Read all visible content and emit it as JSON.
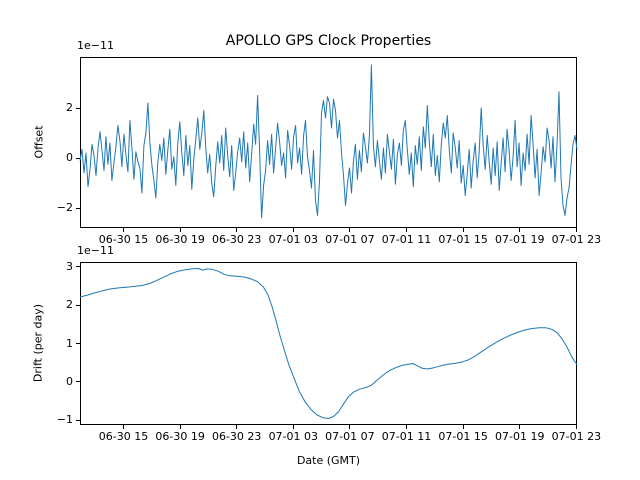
{
  "title": "APOLLO GPS Clock Properties",
  "xticks": {
    "labels": [
      "06-30 15",
      "06-30 19",
      "06-30 23",
      "07-01 03",
      "07-01 07",
      "07-01 11",
      "07-01 15",
      "07-01 19",
      "07-01 23"
    ],
    "fracs": [
      0.0875,
      0.2014,
      0.3153,
      0.4292,
      0.5431,
      0.657,
      0.7709,
      0.8848,
      0.9987
    ]
  },
  "chart_data": [
    {
      "type": "line",
      "title": "APOLLO GPS Clock Properties",
      "ylabel": "Offset",
      "scale_label": "1e−11",
      "units_multiplier": 1e-11,
      "line_color": "#1f77b4",
      "ylim": [
        -2.8,
        4.04
      ],
      "ytick_vals": [
        -2,
        0,
        2
      ],
      "ytick_labels": [
        "−2",
        "0",
        "2"
      ],
      "grid": false,
      "values": [
        -0.1,
        0.35,
        -0.6,
        0.2,
        -1.15,
        -0.45,
        0.55,
        0.1,
        -0.7,
        0.4,
        1.05,
        0.3,
        -0.5,
        0.85,
        -0.25,
        0.6,
        -0.9,
        -0.2,
        0.45,
        1.3,
        0.7,
        -0.35,
        0.95,
        0.15,
        -0.55,
        1.5,
        0.4,
        -0.85,
        0.25,
        -0.15,
        -0.4,
        -1.4,
        0.5,
        1.0,
        2.2,
        0.6,
        -0.3,
        -0.9,
        -1.6,
        -0.2,
        0.55,
        -0.1,
        0.8,
        -0.65,
        0.3,
        1.15,
        -0.45,
        0.05,
        -1.1,
        0.6,
        1.45,
        0.2,
        -0.7,
        0.9,
        -0.3,
        0.5,
        -1.25,
        -0.05,
        0.75,
        1.6,
        0.35,
        1.0,
        1.9,
        0.45,
        -0.6,
        0.15,
        -1.0,
        -1.55,
        -0.35,
        0.65,
        -0.2,
        0.9,
        -0.5,
        1.2,
        0.1,
        -0.75,
        0.5,
        -1.3,
        -0.6,
        0.25,
        0.8,
        -0.15,
        1.05,
        -0.4,
        0.6,
        -0.95,
        0.2,
        1.35,
        0.55,
        2.5,
        0.3,
        -2.4,
        -1.1,
        -0.5,
        0.7,
        -0.25,
        0.95,
        -0.6,
        0.4,
        1.4,
        0.65,
        -0.3,
        0.2,
        -0.8,
        1.1,
        0.5,
        -0.45,
        0.85,
        1.3,
        -0.2,
        0.4,
        -0.65,
        0.9,
        1.5,
        0.05,
        -0.5,
        -1.2,
        0.3,
        -1.7,
        -2.3,
        -0.9,
        1.8,
        2.3,
        1.6,
        2.45,
        2.2,
        1.2,
        2.35,
        1.9,
        0.8,
        1.5,
        0.2,
        -0.7,
        -1.9,
        -1.0,
        -0.4,
        -1.4,
        -0.15,
        0.55,
        -0.85,
        0.3,
        -0.55,
        1.0,
        0.45,
        -0.2,
        0.9,
        3.72,
        0.5,
        -0.35,
        0.7,
        -0.1,
        -0.85,
        0.4,
        -0.6,
        0.95,
        0.25,
        -0.45,
        0.75,
        -1.05,
        0.15,
        0.6,
        -0.3,
        1.1,
        1.5,
        0.35,
        -0.65,
        0.2,
        -1.15,
        0.5,
        -0.25,
        0.85,
        -0.5,
        1.25,
        0.4,
        2.1,
        0.65,
        -0.35,
        0.95,
        -0.7,
        0.1,
        -0.95,
        0.55,
        1.4,
        0.8,
        1.7,
        0.3,
        -0.6,
        1.0,
        0.45,
        -0.4,
        0.7,
        -1.0,
        -0.3,
        -1.5,
        -0.65,
        0.35,
        -1.2,
        -0.1,
        0.6,
        -0.8,
        0.25,
        2.0,
        0.5,
        -0.45,
        0.9,
        -0.15,
        -1.05,
        0.4,
        -0.7,
        0.65,
        -1.3,
        -0.2,
        0.8,
        -0.55,
        1.15,
        0.3,
        -0.9,
        0.05,
        1.5,
        -0.35,
        0.6,
        -1.1,
        0.2,
        -0.5,
        0.95,
        -0.25,
        1.7,
        0.55,
        -0.8,
        0.35,
        -1.5,
        -0.6,
        0.45,
        -0.15,
        1.2,
        0.7,
        -0.4,
        0.85,
        -0.95,
        0.5,
        2.65,
        -0.8,
        -1.9,
        -2.3,
        -1.6,
        -1.2,
        -0.3,
        0.55,
        0.9,
        0.35
      ]
    },
    {
      "type": "line",
      "ylabel": "Drift (per day)",
      "xlabel": "Date (GMT)",
      "scale_label": "1e−11",
      "units_multiplier": 1e-11,
      "line_color": "#1f77b4",
      "ylim": [
        -1.12,
        3.12
      ],
      "ytick_vals": [
        -1,
        0,
        1,
        2,
        3
      ],
      "ytick_labels": [
        "−1",
        "0",
        "1",
        "2",
        "3"
      ],
      "grid": false,
      "points": [
        [
          0.0,
          2.21
        ],
        [
          0.013,
          2.25
        ],
        [
          0.028,
          2.31
        ],
        [
          0.045,
          2.37
        ],
        [
          0.062,
          2.42
        ],
        [
          0.08,
          2.45
        ],
        [
          0.098,
          2.47
        ],
        [
          0.112,
          2.49
        ],
        [
          0.125,
          2.51
        ],
        [
          0.14,
          2.56
        ],
        [
          0.153,
          2.63
        ],
        [
          0.167,
          2.72
        ],
        [
          0.182,
          2.81
        ],
        [
          0.197,
          2.88
        ],
        [
          0.212,
          2.92
        ],
        [
          0.227,
          2.945
        ],
        [
          0.238,
          2.95
        ],
        [
          0.247,
          2.91
        ],
        [
          0.256,
          2.94
        ],
        [
          0.266,
          2.93
        ],
        [
          0.278,
          2.88
        ],
        [
          0.29,
          2.8
        ],
        [
          0.302,
          2.76
        ],
        [
          0.316,
          2.75
        ],
        [
          0.33,
          2.73
        ],
        [
          0.344,
          2.68
        ],
        [
          0.357,
          2.61
        ],
        [
          0.369,
          2.47
        ],
        [
          0.378,
          2.27
        ],
        [
          0.386,
          1.98
        ],
        [
          0.394,
          1.62
        ],
        [
          0.402,
          1.22
        ],
        [
          0.411,
          0.83
        ],
        [
          0.42,
          0.46
        ],
        [
          0.43,
          0.12
        ],
        [
          0.441,
          -0.24
        ],
        [
          0.453,
          -0.52
        ],
        [
          0.465,
          -0.72
        ],
        [
          0.477,
          -0.86
        ],
        [
          0.489,
          -0.93
        ],
        [
          0.5,
          -0.95
        ],
        [
          0.51,
          -0.9
        ],
        [
          0.52,
          -0.78
        ],
        [
          0.53,
          -0.58
        ],
        [
          0.54,
          -0.38
        ],
        [
          0.551,
          -0.26
        ],
        [
          0.562,
          -0.19
        ],
        [
          0.574,
          -0.15
        ],
        [
          0.586,
          -0.09
        ],
        [
          0.598,
          0.05
        ],
        [
          0.61,
          0.18
        ],
        [
          0.622,
          0.29
        ],
        [
          0.635,
          0.37
        ],
        [
          0.648,
          0.43
        ],
        [
          0.66,
          0.46
        ],
        [
          0.67,
          0.48
        ],
        [
          0.68,
          0.41
        ],
        [
          0.69,
          0.35
        ],
        [
          0.7,
          0.34
        ],
        [
          0.712,
          0.37
        ],
        [
          0.726,
          0.42
        ],
        [
          0.74,
          0.46
        ],
        [
          0.753,
          0.48
        ],
        [
          0.766,
          0.51
        ],
        [
          0.779,
          0.56
        ],
        [
          0.791,
          0.64
        ],
        [
          0.805,
          0.76
        ],
        [
          0.82,
          0.89
        ],
        [
          0.835,
          1.01
        ],
        [
          0.85,
          1.12
        ],
        [
          0.865,
          1.21
        ],
        [
          0.88,
          1.29
        ],
        [
          0.895,
          1.35
        ],
        [
          0.91,
          1.39
        ],
        [
          0.924,
          1.41
        ],
        [
          0.937,
          1.41
        ],
        [
          0.949,
          1.37
        ],
        [
          0.96,
          1.28
        ],
        [
          0.97,
          1.12
        ],
        [
          0.98,
          0.9
        ],
        [
          0.99,
          0.64
        ],
        [
          1.0,
          0.45
        ]
      ]
    }
  ]
}
